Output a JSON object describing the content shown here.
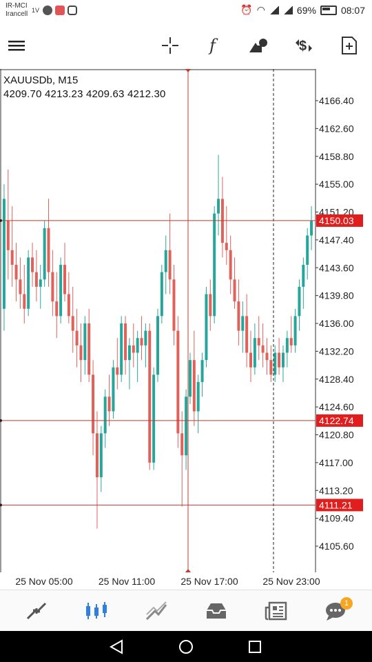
{
  "status_bar": {
    "carrier_1": "IR-MCI",
    "carrier_2": "Irancell",
    "carrier_extra": "1V",
    "battery": "69%",
    "time": "08:07",
    "icons": [
      "red-app-icon",
      "gray-circle-icon",
      "instagram-icon",
      "alarm-icon",
      "wifi-icon",
      "signal-icon",
      "signal-icon",
      "battery-icon"
    ]
  },
  "toolbar": {
    "icons": [
      "menu-icon",
      "crosshair-icon",
      "function-icon",
      "objects-icon",
      "trade-icon",
      "new-order-icon"
    ]
  },
  "chart": {
    "symbol": "XAUUSDb, M15",
    "ohlc": "4209.70 4213.23 4209.63 4212.30"
  },
  "chart_data": {
    "type": "candlestick",
    "symbol": "XAUUSDb",
    "timeframe": "M15",
    "y_ticks": [
      "4166.40",
      "4162.60",
      "4158.80",
      "4155.00",
      "4151.20",
      "4147.40",
      "4143.60",
      "4139.80",
      "4136.00",
      "4132.20",
      "4128.40",
      "4124.60",
      "4120.80",
      "4117.00",
      "4113.20",
      "4109.40",
      "4105.60"
    ],
    "x_ticks": [
      "25 Nov 05:00",
      "25 Nov 11:00",
      "25 Nov 17:00",
      "25 Nov 23:00"
    ],
    "price_lines": [
      {
        "value": 4150.03,
        "label": "4150.03"
      },
      {
        "value": 4122.74,
        "label": "4122.74"
      },
      {
        "value": 4111.21,
        "label": "4111.21"
      }
    ],
    "candles": [
      [
        4138,
        4155,
        4135,
        4153
      ],
      [
        4150,
        4157,
        4142,
        4146
      ],
      [
        4146,
        4152,
        4141,
        4144
      ],
      [
        4144,
        4147,
        4139,
        4142
      ],
      [
        4142,
        4145,
        4138,
        4140
      ],
      [
        4140,
        4144,
        4136,
        4138
      ],
      [
        4138,
        4146,
        4137,
        4145
      ],
      [
        4145,
        4147,
        4141,
        4143
      ],
      [
        4143,
        4146,
        4139,
        4141
      ],
      [
        4141,
        4144,
        4138,
        4142
      ],
      [
        4142,
        4150,
        4141,
        4149
      ],
      [
        4149,
        4153,
        4141,
        4143
      ],
      [
        4143,
        4146,
        4137,
        4139
      ],
      [
        4139,
        4143,
        4134,
        4137
      ],
      [
        4137,
        4145,
        4136,
        4144
      ],
      [
        4144,
        4147,
        4139,
        4140
      ],
      [
        4140,
        4143,
        4136,
        4137
      ],
      [
        4137,
        4141,
        4132,
        4135
      ],
      [
        4135,
        4138,
        4130,
        4133
      ],
      [
        4133,
        4136,
        4128,
        4131
      ],
      [
        4131,
        4137,
        4129,
        4136
      ],
      [
        4136,
        4138,
        4128,
        4129
      ],
      [
        4129,
        4131,
        4118,
        4121
      ],
      [
        4121,
        4124,
        4108,
        4115
      ],
      [
        4115,
        4122,
        4113,
        4121
      ],
      [
        4121,
        4127,
        4119,
        4126
      ],
      [
        4126,
        4129,
        4122,
        4124
      ],
      [
        4124,
        4131,
        4123,
        4130
      ],
      [
        4130,
        4134,
        4127,
        4129
      ],
      [
        4129,
        4137,
        4128,
        4136
      ],
      [
        4136,
        4137,
        4129,
        4131
      ],
      [
        4131,
        4134,
        4127,
        4133
      ],
      [
        4133,
        4136,
        4130,
        4132
      ],
      [
        4132,
        4135,
        4128,
        4134
      ],
      [
        4134,
        4137,
        4131,
        4133
      ],
      [
        4133,
        4136,
        4130,
        4135
      ],
      [
        4135,
        4136,
        4116,
        4117
      ],
      [
        4117,
        4130,
        4116,
        4129
      ],
      [
        4129,
        4138,
        4128,
        4137
      ],
      [
        4137,
        4144,
        4136,
        4143
      ],
      [
        4143,
        4148,
        4140,
        4146
      ],
      [
        4146,
        4151,
        4140,
        4142
      ],
      [
        4142,
        4144,
        4133,
        4135
      ],
      [
        4135,
        4137,
        4119,
        4121
      ],
      [
        4121,
        4124,
        4111,
        4118
      ],
      [
        4118,
        4127,
        4116,
        4126
      ],
      [
        4126,
        4132,
        4125,
        4131
      ],
      [
        4131,
        4135,
        4122,
        4124
      ],
      [
        4124,
        4129,
        4121,
        4128
      ],
      [
        4128,
        4132,
        4126,
        4131
      ],
      [
        4131,
        4141,
        4130,
        4140
      ],
      [
        4140,
        4142,
        4135,
        4137
      ],
      [
        4137,
        4152,
        4136,
        4151
      ],
      [
        4151,
        4159,
        4148,
        4153
      ],
      [
        4153,
        4156,
        4145,
        4147
      ],
      [
        4147,
        4152,
        4144,
        4146
      ],
      [
        4146,
        4148,
        4140,
        4142
      ],
      [
        4142,
        4145,
        4138,
        4139
      ],
      [
        4139,
        4142,
        4133,
        4135
      ],
      [
        4135,
        4139,
        4132,
        4137
      ],
      [
        4137,
        4140,
        4130,
        4132
      ],
      [
        4132,
        4135,
        4128,
        4130
      ],
      [
        4130,
        4136,
        4129,
        4134
      ],
      [
        4134,
        4137,
        4131,
        4133
      ],
      [
        4133,
        4136,
        4130,
        4132
      ],
      [
        4132,
        4134,
        4129,
        4131
      ],
      [
        4131,
        4133,
        4128,
        4129
      ],
      [
        4129,
        4133,
        4128,
        4132
      ],
      [
        4132,
        4134,
        4129,
        4130
      ],
      [
        4130,
        4133,
        4128,
        4132
      ],
      [
        4132,
        4135,
        4130,
        4134
      ],
      [
        4134,
        4137,
        4132,
        4133
      ],
      [
        4133,
        4138,
        4132,
        4137
      ],
      [
        4137,
        4142,
        4135,
        4141
      ],
      [
        4141,
        4145,
        4138,
        4144
      ],
      [
        4144,
        4149,
        4142,
        4148
      ],
      [
        4148,
        4152,
        4146,
        4150
      ]
    ]
  },
  "bottom_nav": {
    "items": [
      "quotes-icon",
      "chart-icon",
      "trade-icon",
      "history-icon",
      "news-icon",
      "chat-icon"
    ],
    "badge": "1"
  },
  "system_nav": {
    "icons": [
      "back-icon",
      "home-icon",
      "recents-icon"
    ]
  }
}
